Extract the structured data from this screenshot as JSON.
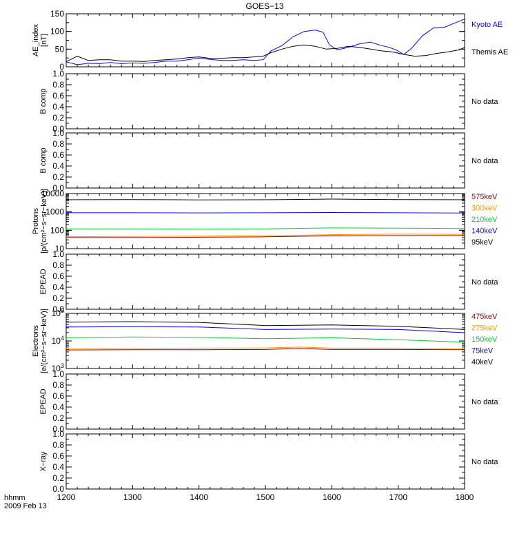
{
  "title": "GOES−13",
  "time_axis": {
    "unit_label": "hhmm",
    "date_label": "2009 Feb 13",
    "ticks": [
      "1200",
      "1300",
      "1400",
      "1500",
      "1600",
      "1700",
      "1800"
    ]
  },
  "chart_data": [
    {
      "type": "line",
      "panel": "ae_index",
      "ylabel": [
        "AE_index",
        "[nT]"
      ],
      "ylim": [
        0,
        150
      ],
      "yscale": "linear",
      "yticks": [
        "0",
        "50",
        "100",
        "150"
      ],
      "x_range": [
        "1200",
        "1800"
      ],
      "series": [
        {
          "name": "Kyoto AE",
          "color": "#0000ff",
          "x": [
            "1200",
            "1210",
            "1220",
            "1230",
            "1240",
            "1250",
            "1300",
            "1310",
            "1320",
            "1330",
            "1340",
            "1350",
            "1400",
            "1410",
            "1420",
            "1430",
            "1440",
            "1450",
            "1458",
            "1505",
            "1515",
            "1525",
            "1535",
            "1545",
            "1552",
            "1558",
            "1605",
            "1615",
            "1625",
            "1635",
            "1645",
            "1652",
            "1658",
            "1705",
            "1712",
            "1722",
            "1732",
            "1742",
            "1752",
            "1800"
          ],
          "values": [
            14,
            6,
            10,
            9,
            12,
            9,
            11,
            10,
            12,
            16,
            16,
            20,
            25,
            21,
            18,
            18,
            20,
            18,
            20,
            45,
            60,
            85,
            100,
            104,
            98,
            62,
            48,
            55,
            65,
            70,
            60,
            55,
            48,
            35,
            52,
            88,
            110,
            112,
            125,
            135
          ]
        },
        {
          "name": "Themis AE",
          "color": "#000000",
          "x": [
            "1200",
            "1205",
            "1210",
            "1220",
            "1230",
            "1240",
            "1250",
            "1300",
            "1310",
            "1320",
            "1330",
            "1340",
            "1350",
            "1400",
            "1410",
            "1420",
            "1430",
            "1440",
            "1450",
            "1458",
            "1505",
            "1515",
            "1525",
            "1535",
            "1545",
            "1555",
            "1605",
            "1615",
            "1625",
            "1635",
            "1645",
            "1655",
            "1705",
            "1715",
            "1725",
            "1735",
            "1745",
            "1755",
            "1800"
          ],
          "values": [
            15,
            22,
            30,
            18,
            20,
            20,
            16,
            16,
            15,
            18,
            20,
            22,
            26,
            28,
            24,
            24,
            26,
            26,
            28,
            30,
            40,
            50,
            58,
            62,
            58,
            50,
            52,
            58,
            55,
            50,
            45,
            42,
            35,
            30,
            32,
            38,
            42,
            48,
            55
          ]
        }
      ]
    },
    {
      "type": "line",
      "panel": "b_comp_1",
      "ylabel": [
        "B comp"
      ],
      "ylim": [
        0,
        1
      ],
      "yscale": "linear",
      "yticks": [
        "0.0",
        "0.2",
        "0.4",
        "0.6",
        "0.8",
        "1.0"
      ],
      "series": [],
      "note": "No data"
    },
    {
      "type": "line",
      "panel": "b_comp_2",
      "ylabel": [
        "B comp"
      ],
      "ylim": [
        0,
        1
      ],
      "yscale": "linear",
      "yticks": [
        "0.0",
        "0.2",
        "0.4",
        "0.6",
        "0.8",
        "1.0"
      ],
      "series": [],
      "note": "No data"
    },
    {
      "type": "line",
      "panel": "protons",
      "ylabel": [
        "Protons",
        "[p/(cm²−s−sr−keV)]"
      ],
      "ylim": [
        10,
        10000
      ],
      "yscale": "log",
      "yticks": [
        "10",
        "100",
        "1000",
        "10000"
      ],
      "series": [
        {
          "name": "575keV",
          "color": "#990000",
          "x": [
            "1200",
            "1300",
            "1400",
            "1500",
            "1600",
            "1700",
            "1800"
          ],
          "values": [
            40,
            40,
            42,
            44,
            50,
            52,
            52
          ]
        },
        {
          "name": "300keV",
          "color": "#ff9900",
          "x": [
            "1200",
            "1300",
            "1400",
            "1500",
            "1600",
            "1700",
            "1800"
          ],
          "values": [
            45,
            46,
            48,
            50,
            58,
            62,
            60
          ]
        },
        {
          "name": "210keV",
          "color": "#00cc33",
          "x": [
            "1200",
            "1300",
            "1400",
            "1500",
            "1600",
            "1700",
            "1800"
          ],
          "values": [
            120,
            120,
            115,
            120,
            135,
            130,
            125
          ]
        },
        {
          "name": "140keV",
          "color": "#0000ff",
          "x": [
            "1200",
            "1300",
            "1400",
            "1500",
            "1600",
            "1700",
            "1800"
          ],
          "values": [
            900,
            900,
            880,
            900,
            930,
            900,
            870
          ]
        },
        {
          "name": "95keV",
          "color": "#000000",
          "x": [
            "1200",
            "1300",
            "1400",
            "1500",
            "1600",
            "1700",
            "1800"
          ],
          "values": [
            4600,
            4700,
            4500,
            4600,
            5000,
            4700,
            4600
          ]
        }
      ]
    },
    {
      "type": "line",
      "panel": "epead_1",
      "ylabel": [
        "EPEAD"
      ],
      "ylim": [
        0,
        1
      ],
      "yscale": "linear",
      "yticks": [
        "0.0",
        "0.2",
        "0.4",
        "0.6",
        "0.8",
        "1.0"
      ],
      "series": [],
      "note": "No data"
    },
    {
      "type": "line",
      "panel": "electrons",
      "ylabel": [
        "Electrons",
        "[e/(cm²−s−sr−keV)]"
      ],
      "ylim": [
        1000,
        100000
      ],
      "yscale": "log",
      "ytick_values": [
        1000,
        10000,
        100000
      ],
      "series": [
        {
          "name": "475keV",
          "color": "#990000",
          "x": [
            "1200",
            "1300",
            "1400",
            "1500",
            "1530",
            "1600",
            "1700",
            "1800"
          ],
          "values": [
            4700,
            4800,
            4800,
            4900,
            5300,
            4900,
            4900,
            4800
          ]
        },
        {
          "name": "275keV",
          "color": "#ff9900",
          "x": [
            "1200",
            "1300",
            "1400",
            "1500",
            "1530",
            "1600",
            "1700",
            "1800"
          ],
          "values": [
            5200,
            5400,
            5500,
            5600,
            6000,
            5500,
            5500,
            5200
          ]
        },
        {
          "name": "150keV",
          "color": "#00cc33",
          "x": [
            "1200",
            "1300",
            "1400",
            "1500",
            "1600",
            "1700",
            "1800"
          ],
          "values": [
            13000,
            14000,
            13500,
            12000,
            13000,
            11000,
            9000
          ]
        },
        {
          "name": "75keV",
          "color": "#0000ff",
          "x": [
            "1200",
            "1300",
            "1400",
            "1500",
            "1600",
            "1700",
            "1800"
          ],
          "values": [
            32000,
            33000,
            32000,
            26000,
            27000,
            26000,
            20000
          ]
        },
        {
          "name": "40keV",
          "color": "#000000",
          "x": [
            "1200",
            "1300",
            "1400",
            "1500",
            "1600",
            "1700",
            "1800"
          ],
          "values": [
            48000,
            50000,
            47000,
            36000,
            38000,
            34000,
            26000
          ]
        }
      ]
    },
    {
      "type": "line",
      "panel": "epead_2",
      "ylabel": [
        "EPEAD"
      ],
      "ylim": [
        0,
        1
      ],
      "yscale": "linear",
      "yticks": [
        "0.0",
        "0.2",
        "0.4",
        "0.6",
        "0.8",
        "1.0"
      ],
      "series": [],
      "note": "No data"
    },
    {
      "type": "line",
      "panel": "xray",
      "ylabel": [
        "X−ray"
      ],
      "ylim": [
        0,
        1
      ],
      "yscale": "linear",
      "yticks": [
        "0.0",
        "0.2",
        "0.4",
        "0.6",
        "0.8",
        "1.0"
      ],
      "series": [],
      "note": "No data"
    }
  ]
}
